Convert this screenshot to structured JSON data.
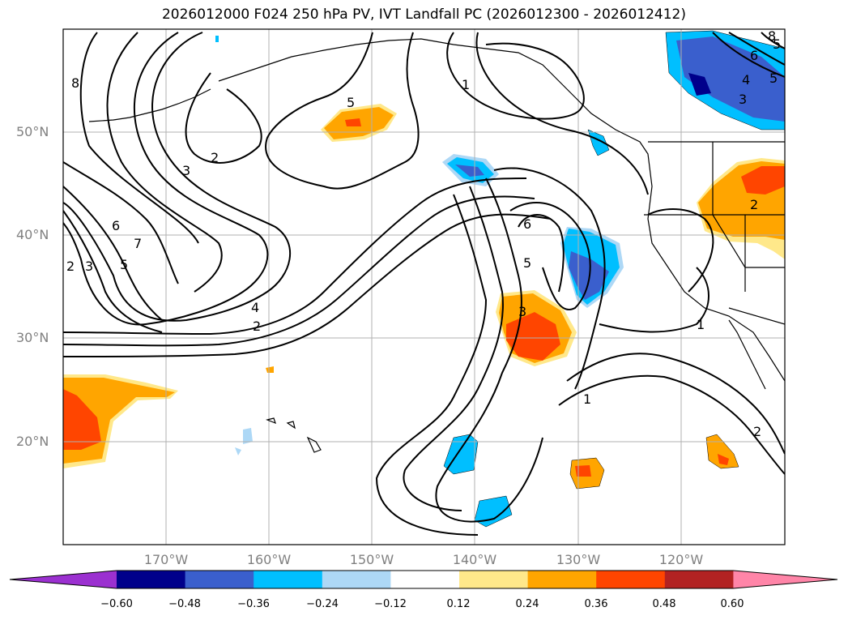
{
  "title": "2026012000 F024 250 hPa PV, IVT Landfall PC (2026012300 - 2026012412)",
  "lat_labels": [
    "50°N",
    "40°N",
    "30°N",
    "20°N"
  ],
  "lon_labels": [
    "170°W",
    "160°W",
    "150°W",
    "140°W",
    "130°W",
    "120°W"
  ],
  "contour_labels": [
    "8",
    "2",
    "3",
    "6",
    "7",
    "5",
    "2",
    "3",
    "4",
    "2",
    "5",
    "1",
    "6",
    "5",
    "3",
    "1",
    "1",
    "2",
    "2",
    "5",
    "6",
    "4",
    "3",
    "5",
    "8"
  ],
  "colorbar": {
    "ticks": [
      "−0.60",
      "−0.48",
      "−0.36",
      "−0.24",
      "−0.12",
      "0.12",
      "0.24",
      "0.36",
      "0.48",
      "0.60"
    ],
    "colors": [
      "#9b30d0",
      "#00008b",
      "#3a5fcd",
      "#00bfff",
      "#add8f6",
      "#ffffff",
      "#ffe88a",
      "#ffa500",
      "#ff4500",
      "#b22222",
      "#ff85a8"
    ]
  }
}
